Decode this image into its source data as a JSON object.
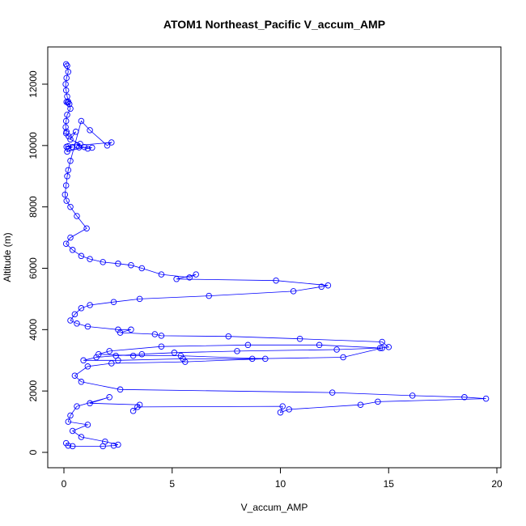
{
  "chart_data": {
    "type": "line",
    "title": "ATOM1 Northeast_Pacific V_accum_AMP",
    "xlabel": "V_accum_AMP",
    "ylabel": "Altitude (m)",
    "xlim": [
      0,
      20
    ],
    "ylim": [
      0,
      12700
    ],
    "x_ticks": [
      "0",
      "5",
      "10",
      "15",
      "20"
    ],
    "y_ticks": [
      "0",
      "2000",
      "4000",
      "6000",
      "8000",
      "10000",
      "12000"
    ],
    "line_and_points": true,
    "colors": {
      "series": "#0000ff",
      "axes": "#000000",
      "background": "#ffffff"
    },
    "series": [
      {
        "x": [
          0.1,
          0.15,
          0.2,
          0.12,
          0.08,
          0.1,
          0.15,
          0.2,
          0.12,
          0.18,
          0.25,
          0.3,
          0.15,
          0.1,
          0.08,
          0.12,
          0.1,
          0.22,
          0.55,
          0.3,
          0.75,
          0.2,
          0.12,
          0.4,
          0.2,
          0.15,
          0.95,
          0.7,
          1.3,
          1.1,
          0.6,
          2.2,
          2.0,
          1.2,
          0.8,
          0.3,
          0.2,
          0.15,
          0.1,
          0.05,
          0.12,
          0.3,
          0.6,
          1.05,
          0.3,
          0.1,
          0.4,
          0.8,
          1.2,
          1.8,
          2.5,
          3.1,
          3.6,
          4.5,
          5.8,
          6.1,
          5.2,
          9.8,
          12.2,
          11.9,
          10.6,
          6.7,
          3.5,
          2.3,
          1.2,
          0.8,
          0.5,
          0.3,
          0.6,
          1.1,
          2.5,
          3.1,
          2.6,
          4.2,
          4.5,
          7.6,
          10.9,
          14.7,
          15.0,
          14.6,
          12.6,
          8.0,
          5.1,
          3.6,
          2.4,
          1.5,
          0.9,
          2.5,
          5.5,
          8.7,
          12.9,
          14.7,
          11.8,
          8.5,
          4.5,
          2.1,
          1.6,
          3.2,
          5.4,
          9.3,
          5.6,
          2.2,
          1.1,
          0.5,
          0.8,
          2.6,
          12.4,
          16.1,
          18.5,
          19.5,
          14.5,
          13.7,
          10.4,
          10.0,
          10.1,
          3.4,
          3.2,
          3.5,
          1.2,
          2.1,
          0.6,
          0.3,
          0.2,
          1.1,
          0.4,
          0.8,
          1.9,
          2.5,
          2.3,
          1.8,
          0.4,
          0.2,
          0.1
        ],
        "y": [
          12650,
          12600,
          12400,
          12200,
          12000,
          11800,
          11600,
          11430,
          11420,
          11400,
          11350,
          11200,
          11000,
          10800,
          10600,
          10450,
          10400,
          10300,
          10450,
          10200,
          10050,
          9980,
          9960,
          9950,
          9900,
          9800,
          9950,
          9940,
          9930,
          9900,
          10000,
          10100,
          10000,
          10500,
          10800,
          9500,
          9200,
          9000,
          8700,
          8400,
          8200,
          8000,
          7700,
          7300,
          7000,
          6800,
          6600,
          6400,
          6300,
          6200,
          6150,
          6100,
          6000,
          5800,
          5700,
          5800,
          5650,
          5600,
          5440,
          5400,
          5250,
          5100,
          5000,
          4900,
          4800,
          4700,
          4500,
          4300,
          4200,
          4100,
          4000,
          4000,
          3900,
          3850,
          3800,
          3780,
          3700,
          3600,
          3430,
          3400,
          3350,
          3300,
          3250,
          3200,
          3150,
          3100,
          3000,
          3000,
          3050,
          3050,
          3100,
          3400,
          3500,
          3500,
          3450,
          3300,
          3200,
          3150,
          3150,
          3050,
          2950,
          2900,
          2800,
          2500,
          2300,
          2050,
          1950,
          1850,
          1800,
          1750,
          1650,
          1550,
          1400,
          1300,
          1500,
          1480,
          1350,
          1550,
          1600,
          1800,
          1500,
          1200,
          1000,
          900,
          700,
          500,
          350,
          250,
          220,
          200,
          200,
          220,
          300
        ]
      }
    ]
  }
}
